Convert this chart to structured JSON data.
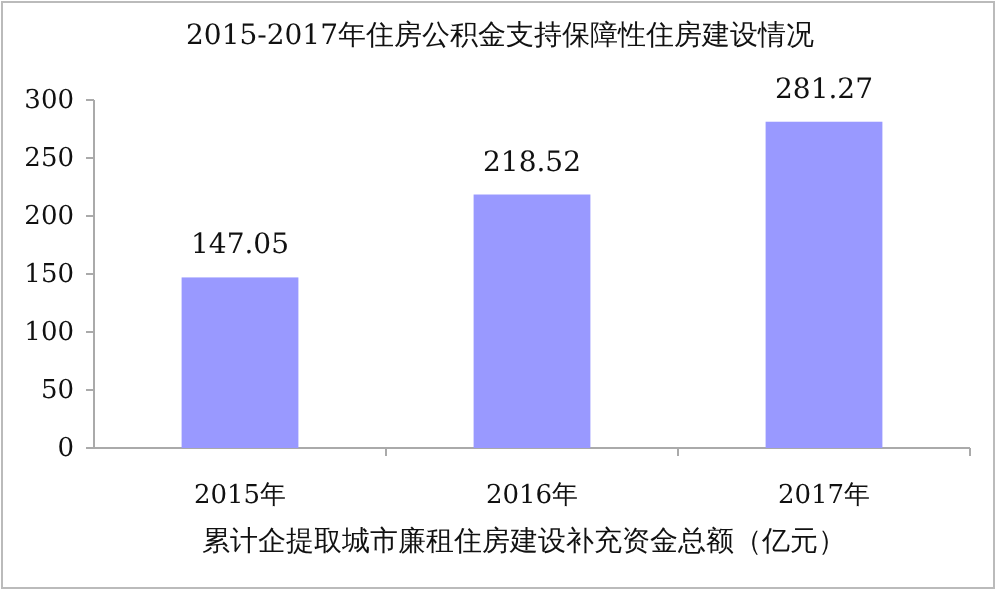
{
  "chart_data": {
    "type": "bar",
    "title": "2015-2017年住房公积金支持保障性住房建设情况",
    "xlabel": "累计企提取城市廉租住房建设补充资金总额（亿元）",
    "categories": [
      "2015年",
      "2016年",
      "2017年"
    ],
    "values": [
      147.05,
      218.52,
      281.27
    ],
    "color": "#9999ff",
    "data_labels": true,
    "ylim": [
      0,
      300
    ],
    "yticks": [
      0,
      50,
      100,
      150,
      200,
      250,
      300
    ],
    "grid": false
  }
}
